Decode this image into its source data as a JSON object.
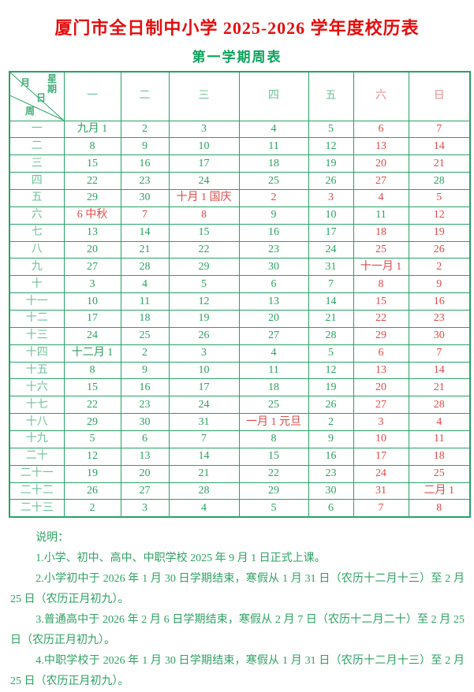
{
  "page": {
    "title": "厦门市全日制中小学 2025-2026 学年度校历表",
    "subtitle": "第一学期周表"
  },
  "colors": {
    "title_red": "#e60d0d",
    "subtitle_green": "#0ba35a",
    "border_green": "#2aa168",
    "weekday_green": "#2ca264",
    "weekend_red": "#e04a4a",
    "label_green_light": "#6fc29a",
    "label_red_light": "#ea8f8f"
  },
  "table": {
    "corner": {
      "month_label": "月",
      "weekday_label": "星期",
      "day_label": "日",
      "week_label": "周"
    },
    "weekday_headers": [
      {
        "label": "一",
        "c": "g"
      },
      {
        "label": "二",
        "c": "g"
      },
      {
        "label": "三",
        "c": "g"
      },
      {
        "label": "四",
        "c": "g"
      },
      {
        "label": "五",
        "c": "g"
      },
      {
        "label": "六",
        "c": "r"
      },
      {
        "label": "日",
        "c": "r"
      }
    ],
    "rows": [
      {
        "week": "一",
        "cells": [
          {
            "t": "九月 1",
            "c": "g"
          },
          {
            "t": "2",
            "c": "g"
          },
          {
            "t": "3",
            "c": "g"
          },
          {
            "t": "4",
            "c": "g"
          },
          {
            "t": "5",
            "c": "g"
          },
          {
            "t": "6",
            "c": "r"
          },
          {
            "t": "7",
            "c": "r"
          }
        ]
      },
      {
        "week": "二",
        "cells": [
          {
            "t": "8",
            "c": "g"
          },
          {
            "t": "9",
            "c": "g"
          },
          {
            "t": "10",
            "c": "g"
          },
          {
            "t": "11",
            "c": "g"
          },
          {
            "t": "12",
            "c": "g"
          },
          {
            "t": "13",
            "c": "r"
          },
          {
            "t": "14",
            "c": "r"
          }
        ]
      },
      {
        "week": "三",
        "cells": [
          {
            "t": "15",
            "c": "g"
          },
          {
            "t": "16",
            "c": "g"
          },
          {
            "t": "17",
            "c": "g"
          },
          {
            "t": "18",
            "c": "g"
          },
          {
            "t": "19",
            "c": "g"
          },
          {
            "t": "20",
            "c": "r"
          },
          {
            "t": "21",
            "c": "r"
          }
        ]
      },
      {
        "week": "四",
        "cells": [
          {
            "t": "22",
            "c": "g"
          },
          {
            "t": "23",
            "c": "g"
          },
          {
            "t": "24",
            "c": "g"
          },
          {
            "t": "25",
            "c": "g"
          },
          {
            "t": "26",
            "c": "g"
          },
          {
            "t": "27",
            "c": "r"
          },
          {
            "t": "28",
            "c": "g"
          }
        ]
      },
      {
        "week": "五",
        "cells": [
          {
            "t": "29",
            "c": "g"
          },
          {
            "t": "30",
            "c": "g"
          },
          {
            "t": "十月 1 国庆",
            "c": "r"
          },
          {
            "t": "2",
            "c": "r"
          },
          {
            "t": "3",
            "c": "r"
          },
          {
            "t": "4",
            "c": "r"
          },
          {
            "t": "5",
            "c": "r"
          }
        ]
      },
      {
        "week": "六",
        "cells": [
          {
            "t": "6 中秋",
            "c": "r"
          },
          {
            "t": "7",
            "c": "r"
          },
          {
            "t": "8",
            "c": "r"
          },
          {
            "t": "9",
            "c": "g"
          },
          {
            "t": "10",
            "c": "g"
          },
          {
            "t": "11",
            "c": "g"
          },
          {
            "t": "12",
            "c": "r"
          }
        ]
      },
      {
        "week": "七",
        "cells": [
          {
            "t": "13",
            "c": "g"
          },
          {
            "t": "14",
            "c": "g"
          },
          {
            "t": "15",
            "c": "g"
          },
          {
            "t": "16",
            "c": "g"
          },
          {
            "t": "17",
            "c": "g"
          },
          {
            "t": "18",
            "c": "r"
          },
          {
            "t": "19",
            "c": "r"
          }
        ]
      },
      {
        "week": "八",
        "cells": [
          {
            "t": "20",
            "c": "g"
          },
          {
            "t": "21",
            "c": "g"
          },
          {
            "t": "22",
            "c": "g"
          },
          {
            "t": "23",
            "c": "g"
          },
          {
            "t": "24",
            "c": "g"
          },
          {
            "t": "25",
            "c": "r"
          },
          {
            "t": "26",
            "c": "r"
          }
        ]
      },
      {
        "week": "九",
        "cells": [
          {
            "t": "27",
            "c": "g"
          },
          {
            "t": "28",
            "c": "g"
          },
          {
            "t": "29",
            "c": "g"
          },
          {
            "t": "30",
            "c": "g"
          },
          {
            "t": "31",
            "c": "g"
          },
          {
            "t": "十一月 1",
            "c": "r"
          },
          {
            "t": "2",
            "c": "r"
          }
        ]
      },
      {
        "week": "十",
        "cells": [
          {
            "t": "3",
            "c": "g"
          },
          {
            "t": "4",
            "c": "g"
          },
          {
            "t": "5",
            "c": "g"
          },
          {
            "t": "6",
            "c": "g"
          },
          {
            "t": "7",
            "c": "g"
          },
          {
            "t": "8",
            "c": "r"
          },
          {
            "t": "9",
            "c": "r"
          }
        ]
      },
      {
        "week": "十一",
        "cells": [
          {
            "t": "10",
            "c": "g"
          },
          {
            "t": "11",
            "c": "g"
          },
          {
            "t": "12",
            "c": "g"
          },
          {
            "t": "13",
            "c": "g"
          },
          {
            "t": "14",
            "c": "g"
          },
          {
            "t": "15",
            "c": "r"
          },
          {
            "t": "16",
            "c": "r"
          }
        ]
      },
      {
        "week": "十二",
        "cells": [
          {
            "t": "17",
            "c": "g"
          },
          {
            "t": "18",
            "c": "g"
          },
          {
            "t": "19",
            "c": "g"
          },
          {
            "t": "20",
            "c": "g"
          },
          {
            "t": "21",
            "c": "g"
          },
          {
            "t": "22",
            "c": "r"
          },
          {
            "t": "23",
            "c": "r"
          }
        ]
      },
      {
        "week": "十三",
        "cells": [
          {
            "t": "24",
            "c": "g"
          },
          {
            "t": "25",
            "c": "g"
          },
          {
            "t": "26",
            "c": "g"
          },
          {
            "t": "27",
            "c": "g"
          },
          {
            "t": "28",
            "c": "g"
          },
          {
            "t": "29",
            "c": "r"
          },
          {
            "t": "30",
            "c": "r"
          }
        ]
      },
      {
        "week": "十四",
        "cells": [
          {
            "t": "十二月 1",
            "c": "g"
          },
          {
            "t": "2",
            "c": "g"
          },
          {
            "t": "3",
            "c": "g"
          },
          {
            "t": "4",
            "c": "g"
          },
          {
            "t": "5",
            "c": "g"
          },
          {
            "t": "6",
            "c": "r"
          },
          {
            "t": "7",
            "c": "r"
          }
        ]
      },
      {
        "week": "十五",
        "cells": [
          {
            "t": "8",
            "c": "g"
          },
          {
            "t": "9",
            "c": "g"
          },
          {
            "t": "10",
            "c": "g"
          },
          {
            "t": "11",
            "c": "g"
          },
          {
            "t": "12",
            "c": "g"
          },
          {
            "t": "13",
            "c": "r"
          },
          {
            "t": "14",
            "c": "r"
          }
        ]
      },
      {
        "week": "十六",
        "cells": [
          {
            "t": "15",
            "c": "g"
          },
          {
            "t": "16",
            "c": "g"
          },
          {
            "t": "17",
            "c": "g"
          },
          {
            "t": "18",
            "c": "g"
          },
          {
            "t": "19",
            "c": "g"
          },
          {
            "t": "20",
            "c": "r"
          },
          {
            "t": "21",
            "c": "r"
          }
        ]
      },
      {
        "week": "十七",
        "cells": [
          {
            "t": "22",
            "c": "g"
          },
          {
            "t": "23",
            "c": "g"
          },
          {
            "t": "24",
            "c": "g"
          },
          {
            "t": "25",
            "c": "g"
          },
          {
            "t": "26",
            "c": "g"
          },
          {
            "t": "27",
            "c": "r"
          },
          {
            "t": "28",
            "c": "r"
          }
        ]
      },
      {
        "week": "十八",
        "cells": [
          {
            "t": "29",
            "c": "g"
          },
          {
            "t": "30",
            "c": "g"
          },
          {
            "t": "31",
            "c": "g"
          },
          {
            "t": "一月 1 元旦",
            "c": "r"
          },
          {
            "t": "2",
            "c": "g"
          },
          {
            "t": "3",
            "c": "r"
          },
          {
            "t": "4",
            "c": "r"
          }
        ]
      },
      {
        "week": "十九",
        "cells": [
          {
            "t": "5",
            "c": "g"
          },
          {
            "t": "6",
            "c": "g"
          },
          {
            "t": "7",
            "c": "g"
          },
          {
            "t": "8",
            "c": "g"
          },
          {
            "t": "9",
            "c": "g"
          },
          {
            "t": "10",
            "c": "r"
          },
          {
            "t": "11",
            "c": "r"
          }
        ]
      },
      {
        "week": "二十",
        "cells": [
          {
            "t": "12",
            "c": "g"
          },
          {
            "t": "13",
            "c": "g"
          },
          {
            "t": "14",
            "c": "g"
          },
          {
            "t": "15",
            "c": "g"
          },
          {
            "t": "16",
            "c": "g"
          },
          {
            "t": "17",
            "c": "r"
          },
          {
            "t": "18",
            "c": "r"
          }
        ]
      },
      {
        "week": "二十一",
        "cells": [
          {
            "t": "19",
            "c": "g"
          },
          {
            "t": "20",
            "c": "g"
          },
          {
            "t": "21",
            "c": "g"
          },
          {
            "t": "22",
            "c": "g"
          },
          {
            "t": "23",
            "c": "g"
          },
          {
            "t": "24",
            "c": "r"
          },
          {
            "t": "25",
            "c": "r"
          }
        ]
      },
      {
        "week": "二十二",
        "cells": [
          {
            "t": "26",
            "c": "g"
          },
          {
            "t": "27",
            "c": "g"
          },
          {
            "t": "28",
            "c": "g"
          },
          {
            "t": "29",
            "c": "g"
          },
          {
            "t": "30",
            "c": "g"
          },
          {
            "t": "31",
            "c": "r"
          },
          {
            "t": "二月 1",
            "c": "r"
          }
        ]
      },
      {
        "week": "二十三",
        "cells": [
          {
            "t": "2",
            "c": "g"
          },
          {
            "t": "3",
            "c": "g"
          },
          {
            "t": "4",
            "c": "g"
          },
          {
            "t": "5",
            "c": "g"
          },
          {
            "t": "6",
            "c": "g"
          },
          {
            "t": "7",
            "c": "r"
          },
          {
            "t": "8",
            "c": "r"
          }
        ]
      }
    ]
  },
  "notes": {
    "heading": "说明：",
    "items": [
      "1.小学、初中、高中、中职学校 2025 年 9 月 1 日正式上课。",
      "2.小学初中于 2026 年 1 月 30 日学期结束，寒假从 1 月 31 日（农历十二月十三）至 2 月 25 日（农历正月初九）。",
      "3.普通高中于 2026 年 2 月 6 日学期结束，寒假从 2 月 7 日（农历十二月二十）至 2 月 25 日（农历正月初九）。",
      "4.中职学校于 2026 年 1 月 30 日学期结束，寒假从 1 月 31 日（农历十二月十三）至 2 月 25 日（农历正月初九）。"
    ]
  }
}
